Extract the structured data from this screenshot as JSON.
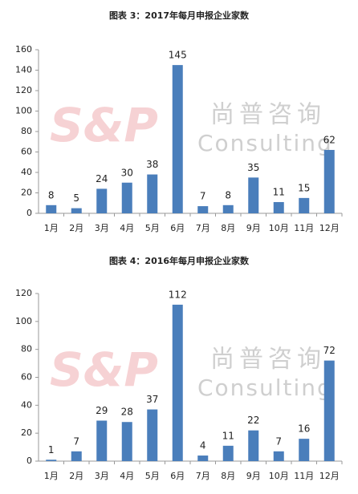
{
  "chart_data": [
    {
      "type": "bar",
      "title": "图表 3：2017年每月申报企业家数",
      "categories": [
        "1月",
        "2月",
        "3月",
        "4月",
        "5月",
        "6月",
        "7月",
        "8月",
        "9月",
        "10月",
        "11月",
        "12月"
      ],
      "values": [
        8,
        5,
        24,
        30,
        38,
        145,
        7,
        8,
        35,
        11,
        15,
        62
      ],
      "color": "#4a7ebb",
      "ylim": [
        0,
        160
      ],
      "yticks": [
        0,
        20,
        40,
        60,
        80,
        100,
        120,
        140,
        160
      ],
      "grid": false
    },
    {
      "type": "bar",
      "title": "图表 4：2016年每月申报企业家数",
      "categories": [
        "1月",
        "2月",
        "3月",
        "4月",
        "5月",
        "6月",
        "7月",
        "8月",
        "9月",
        "10月",
        "11月",
        "12月"
      ],
      "values": [
        1,
        7,
        29,
        28,
        37,
        112,
        4,
        11,
        22,
        7,
        16,
        72
      ],
      "color": "#4a7ebb",
      "ylim": [
        0,
        120
      ],
      "yticks": [
        0,
        20,
        40,
        60,
        80,
        100,
        120
      ],
      "grid": false
    }
  ],
  "watermark": {
    "logo": "S&P",
    "cn": "尚普咨询",
    "en": "Consulting"
  }
}
